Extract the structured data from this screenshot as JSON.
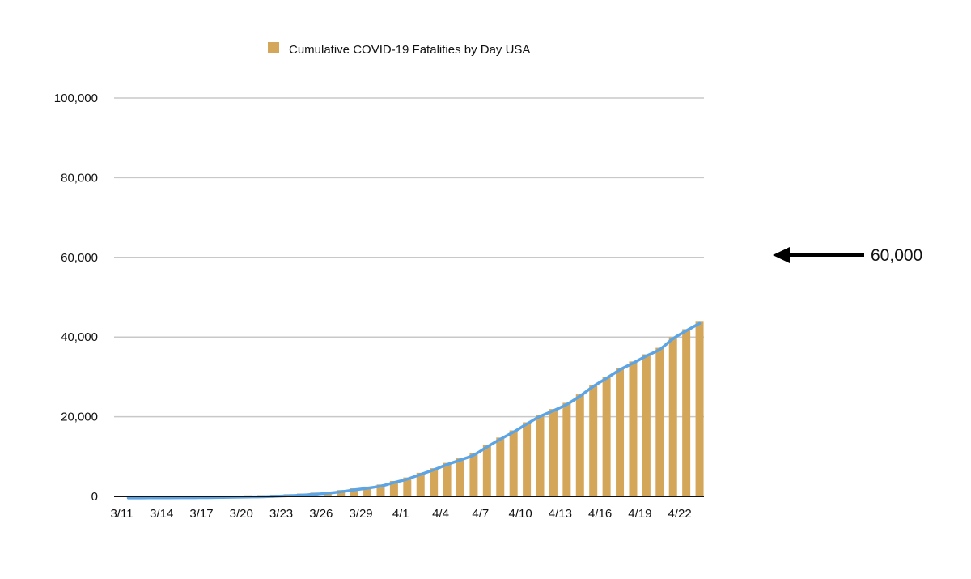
{
  "chart_data": {
    "type": "bar",
    "legend": {
      "label": "Cumulative COVID-19 Fatalities by Day USA",
      "position": "top-center"
    },
    "colors": {
      "bars": "#D4A65A",
      "trendline": "#5BA4E6",
      "reference_line": "#B8321F",
      "grid": "#C8C8C8",
      "axis": "#111111"
    },
    "ylim": [
      0,
      100000
    ],
    "y_ticks": [
      {
        "value": 0,
        "label": "0"
      },
      {
        "value": 20000,
        "label": "20,000"
      },
      {
        "value": 40000,
        "label": "40,000"
      },
      {
        "value": 60000,
        "label": "60,000"
      },
      {
        "value": 80000,
        "label": "80,000"
      },
      {
        "value": 100000,
        "label": "100,000"
      }
    ],
    "grid": true,
    "x_tick_labels": [
      "3/11",
      "3/14",
      "3/17",
      "3/20",
      "3/23",
      "3/26",
      "3/29",
      "4/1",
      "4/4",
      "4/7",
      "4/10",
      "4/13",
      "4/16",
      "4/19",
      "4/22"
    ],
    "categories": [
      "3/11",
      "3/12",
      "3/13",
      "3/14",
      "3/15",
      "3/16",
      "3/17",
      "3/18",
      "3/19",
      "3/20",
      "3/21",
      "3/22",
      "3/23",
      "3/24",
      "3/25",
      "3/26",
      "3/27",
      "3/28",
      "3/29",
      "3/30",
      "3/31",
      "4/1",
      "4/2",
      "4/3",
      "4/4",
      "4/5",
      "4/6",
      "4/7",
      "4/8",
      "4/9",
      "4/10",
      "4/11",
      "4/12",
      "4/13",
      "4/14",
      "4/15",
      "4/16",
      "4/17",
      "4/18",
      "4/19",
      "4/20",
      "4/21",
      "4/22",
      "4/23"
    ],
    "values": [
      31,
      38,
      48,
      54,
      68,
      88,
      109,
      150,
      206,
      255,
      301,
      417,
      546,
      706,
      945,
      1208,
      1581,
      2026,
      2467,
      2978,
      3873,
      4745,
      5921,
      7088,
      8407,
      9536,
      10795,
      12811,
      14763,
      16566,
      18591,
      20486,
      21921,
      23484,
      25585,
      28006,
      30061,
      32176,
      33867,
      35662,
      37285,
      39972,
      41982,
      43838
    ],
    "trendline": true,
    "reference_line": {
      "value": 60000,
      "style": "dotted"
    },
    "callout": {
      "label": "60,000",
      "arrow": "left"
    }
  }
}
